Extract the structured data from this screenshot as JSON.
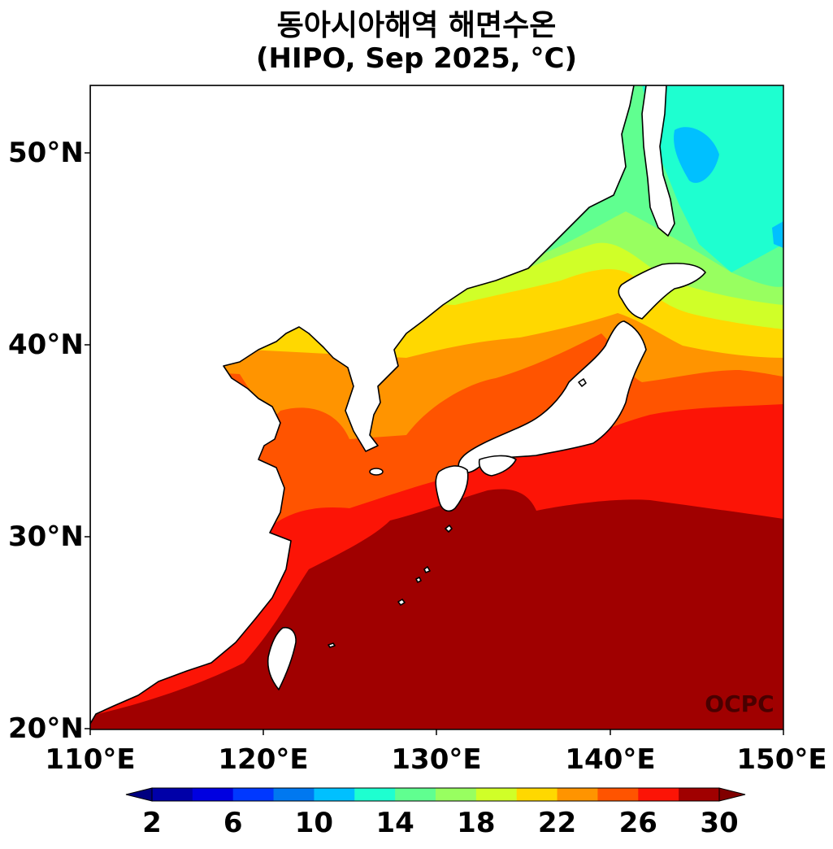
{
  "title": {
    "line1": "동아시아해역 해면수온",
    "line2": "(HIPO, Sep 2025, °C)"
  },
  "axes": {
    "lat_labels": [
      "50°N",
      "40°N",
      "30°N",
      "20°N"
    ],
    "lon_labels": [
      "110°E",
      "120°E",
      "130°E",
      "140°E",
      "150°E"
    ],
    "lon_range": [
      110,
      150
    ],
    "lat_range": [
      20,
      53.5
    ]
  },
  "colorbar": {
    "tick_labels": [
      "2",
      "6",
      "10",
      "14",
      "18",
      "22",
      "26",
      "30"
    ],
    "levels": [
      2,
      4,
      6,
      8,
      10,
      12,
      14,
      16,
      18,
      20,
      22,
      24,
      26,
      28,
      30
    ],
    "colors": [
      "#0000a8",
      "#0000e0",
      "#0038ff",
      "#0078f0",
      "#00c0ff",
      "#1effd0",
      "#60ff90",
      "#98ff60",
      "#d0ff28",
      "#ffd800",
      "#ff9400",
      "#ff5400",
      "#fc1406",
      "#a00000"
    ],
    "extend": "both",
    "under_color": "#000080",
    "over_color": "#800000"
  },
  "watermark": "OCPC",
  "land_color": "#ffffff",
  "coast_color": "#000000"
}
